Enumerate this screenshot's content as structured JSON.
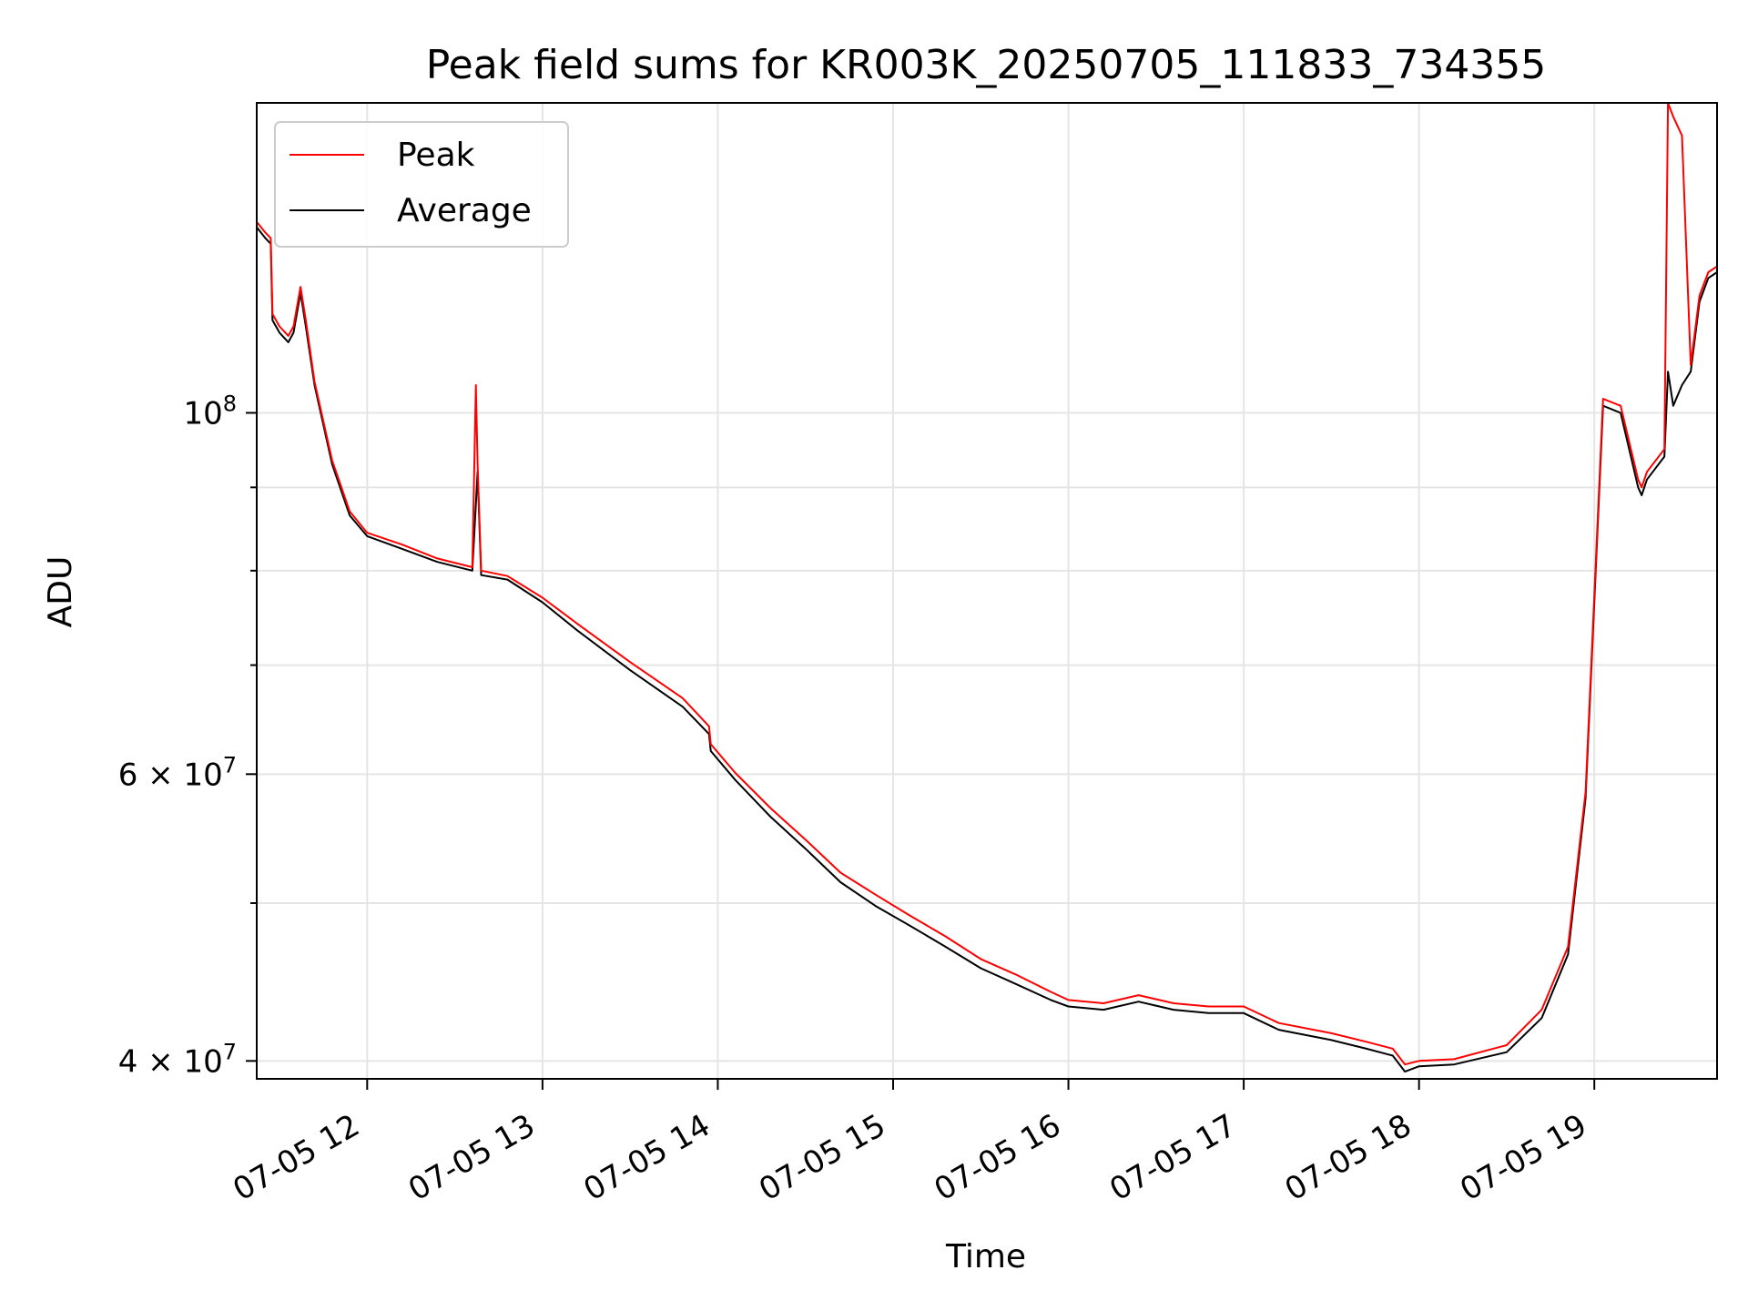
{
  "chart_data": {
    "type": "line",
    "title": "Peak field sums for KR003K_20250705_111833_734355",
    "xlabel": "Time",
    "ylabel": "ADU",
    "x_range_hours": [
      11.37,
      19.7
    ],
    "ylim": [
      39000000,
      155000000
    ],
    "y_scale": "log",
    "grid": true,
    "legend": "top-left",
    "x_ticks": [
      {
        "value": 12,
        "label": "07-05 12"
      },
      {
        "value": 13,
        "label": "07-05 13"
      },
      {
        "value": 14,
        "label": "07-05 14"
      },
      {
        "value": 15,
        "label": "07-05 15"
      },
      {
        "value": 16,
        "label": "07-05 16"
      },
      {
        "value": 17,
        "label": "07-05 17"
      },
      {
        "value": 18,
        "label": "07-05 18"
      },
      {
        "value": 19,
        "label": "07-05 19"
      }
    ],
    "y_major_ticks": [
      {
        "value": 40000000,
        "mantissa": "4",
        "exp": "7"
      },
      {
        "value": 60000000,
        "mantissa": "6",
        "exp": "7"
      },
      {
        "value": 100000000,
        "mantissa": "",
        "exp": "8"
      }
    ],
    "y_minor_ticks": [
      50000000,
      70000000,
      80000000,
      90000000
    ],
    "series": [
      {
        "name": "Average",
        "color": "#000000",
        "x": [
          11.37,
          11.42,
          11.45,
          11.46,
          11.5,
          11.55,
          11.58,
          11.62,
          11.65,
          11.7,
          11.8,
          11.9,
          12.0,
          12.2,
          12.4,
          12.6,
          12.63,
          12.65,
          12.8,
          13.0,
          13.2,
          13.5,
          13.8,
          13.95,
          13.96,
          14.1,
          14.3,
          14.5,
          14.7,
          14.9,
          15.1,
          15.3,
          15.5,
          15.7,
          15.9,
          16.0,
          16.2,
          16.4,
          16.6,
          16.8,
          17.0,
          17.2,
          17.5,
          17.7,
          17.85,
          17.92,
          18.0,
          18.2,
          18.5,
          18.7,
          18.85,
          18.95,
          19.05,
          19.15,
          19.25,
          19.27,
          19.3,
          19.4,
          19.42,
          19.45,
          19.5,
          19.55,
          19.6,
          19.65,
          19.7
        ],
        "y": [
          130000000,
          128000000,
          127000000,
          114000000,
          112000000,
          110500000,
          112000000,
          118500000,
          113000000,
          104000000,
          93000000,
          86500000,
          84000000,
          82500000,
          81000000,
          80000000,
          92000000,
          79500000,
          79000000,
          76500000,
          73500000,
          69500000,
          66000000,
          63500000,
          62000000,
          59500000,
          56500000,
          54000000,
          51500000,
          49800000,
          48400000,
          47000000,
          45600000,
          44600000,
          43600000,
          43200000,
          43000000,
          43500000,
          43000000,
          42800000,
          42800000,
          41800000,
          41200000,
          40700000,
          40300000,
          39400000,
          39700000,
          39800000,
          40500000,
          42500000,
          46500000,
          58000000,
          101000000,
          100000000,
          90000000,
          89000000,
          91000000,
          94000000,
          106000000,
          101000000,
          104000000,
          106000000,
          117000000,
          121000000,
          122000000
        ]
      },
      {
        "name": "Peak",
        "color": "#ff0000",
        "x": [
          11.37,
          11.42,
          11.45,
          11.46,
          11.5,
          11.55,
          11.58,
          11.62,
          11.65,
          11.7,
          11.8,
          11.9,
          12.0,
          12.2,
          12.4,
          12.6,
          12.62,
          12.63,
          12.65,
          12.8,
          13.0,
          13.2,
          13.5,
          13.8,
          13.95,
          13.96,
          14.1,
          14.3,
          14.5,
          14.7,
          14.9,
          15.1,
          15.3,
          15.5,
          15.7,
          15.9,
          16.0,
          16.2,
          16.4,
          16.6,
          16.8,
          17.0,
          17.2,
          17.5,
          17.7,
          17.85,
          17.92,
          18.0,
          18.2,
          18.5,
          18.7,
          18.85,
          18.95,
          19.05,
          19.15,
          19.25,
          19.27,
          19.3,
          19.4,
          19.42,
          19.45,
          19.5,
          19.55,
          19.6,
          19.65,
          19.7
        ],
        "y": [
          131000000,
          129000000,
          128000000,
          115000000,
          113000000,
          111500000,
          113000000,
          119500000,
          114000000,
          104500000,
          93500000,
          87000000,
          84400000,
          83000000,
          81400000,
          80400000,
          104000000,
          93000000,
          80000000,
          79400000,
          77000000,
          74200000,
          70300000,
          66800000,
          64200000,
          62600000,
          60100000,
          57200000,
          54700000,
          52200000,
          50600000,
          49100000,
          47700000,
          46200000,
          45200000,
          44100000,
          43600000,
          43400000,
          43900000,
          43400000,
          43200000,
          43200000,
          42200000,
          41600000,
          41100000,
          40700000,
          39800000,
          40000000,
          40100000,
          40900000,
          43000000,
          47000000,
          58500000,
          102000000,
          101000000,
          91000000,
          90000000,
          92000000,
          95000000,
          155000000,
          152000000,
          148000000,
          107000000,
          118000000,
          122000000,
          123000000
        ]
      }
    ]
  }
}
